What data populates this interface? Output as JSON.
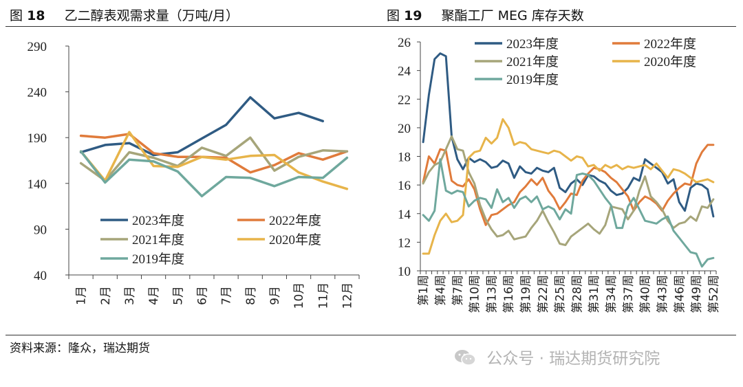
{
  "left": {
    "fig_label": "图",
    "fig_num": "18",
    "title": "乙二醇表观需求量（万吨/月）"
  },
  "right": {
    "fig_label": "图",
    "fig_num": "19",
    "title": "聚酯工厂 MEG 库存天数"
  },
  "footer": {
    "source": "资料来源：隆众，瑞达期货",
    "watermark": "公众号 · 瑞达期货研究院",
    "watermark_icon": "wechat-icon"
  },
  "colors": {
    "2023": "#2f5b83",
    "2022": "#e07b3b",
    "2021": "#a6a57a",
    "2020": "#e7b44a",
    "2019": "#6fa89d"
  },
  "chart_data": [
    {
      "type": "line",
      "categories": [
        "1月",
        "2月",
        "3月",
        "4月",
        "5月",
        "6月",
        "7月",
        "8月",
        "9月",
        "10月",
        "11月",
        "12月"
      ],
      "ylim": [
        40,
        290
      ],
      "yticks": [
        40,
        90,
        140,
        190,
        240,
        290
      ],
      "legend": "bottom-left",
      "grid": false,
      "series": [
        {
          "name": "2023年度",
          "key": "2023",
          "values": [
            174,
            182,
            184,
            171,
            174,
            189,
            204,
            234,
            211,
            217,
            208,
            null
          ]
        },
        {
          "name": "2022年度",
          "key": "2022",
          "values": [
            192,
            190,
            194,
            173,
            169,
            169,
            168,
            152,
            160,
            173,
            166,
            175
          ]
        },
        {
          "name": "2021年度",
          "key": "2021",
          "values": [
            162,
            143,
            174,
            168,
            159,
            179,
            170,
            190,
            154,
            169,
            176,
            175
          ]
        },
        {
          "name": "2020年度",
          "key": "2020",
          "values": [
            175,
            143,
            196,
            159,
            158,
            169,
            166,
            170,
            171,
            152,
            142,
            134
          ]
        },
        {
          "name": "2019年度",
          "key": "2019",
          "values": [
            175,
            141,
            166,
            164,
            153,
            126,
            147,
            146,
            137,
            147,
            146,
            168
          ]
        }
      ]
    },
    {
      "type": "line",
      "x_tick_labels": [
        "第1周",
        "第4周",
        "第7周",
        "第10周",
        "第13周",
        "第16周",
        "第19周",
        "第22周",
        "第25周",
        "第28周",
        "第31周",
        "第34周",
        "第37周",
        "第40周",
        "第43周",
        "第46周",
        "第49周",
        "第52周"
      ],
      "x_count": 52,
      "ylim": [
        10,
        26
      ],
      "yticks": [
        10,
        12,
        14,
        16,
        18,
        20,
        22,
        24,
        26
      ],
      "legend": "top",
      "grid": false,
      "series": [
        {
          "name": "2023年度",
          "key": "2023",
          "values": [
            19.0,
            22.3,
            24.8,
            25.2,
            25.0,
            19.4,
            17.8,
            17.1,
            17.9,
            17.6,
            17.8,
            17.6,
            17.2,
            17.3,
            17.7,
            17.5,
            16.5,
            17.3,
            16.9,
            16.8,
            17.2,
            17.0,
            16.9,
            17.2,
            15.8,
            15.5,
            16.1,
            16.4,
            16.0,
            16.7,
            16.6,
            16.3,
            16.1,
            15.6,
            15.3,
            15.4,
            15.8,
            16.5,
            16.3,
            17.8,
            17.5,
            17.2,
            16.9,
            16.1,
            16.4,
            14.8,
            14.2,
            15.8,
            16.1,
            16.0,
            15.7,
            13.8
          ]
        },
        {
          "name": "2022年度",
          "key": "2022",
          "values": [
            16.2,
            18.0,
            17.5,
            18.5,
            18.4,
            16.3,
            16.0,
            15.9,
            16.4,
            15.7,
            14.3,
            13.2,
            13.9,
            14.0,
            14.3,
            14.6,
            14.8,
            15.5,
            15.9,
            16.4,
            16.0,
            16.5,
            15.6,
            15.1,
            14.3,
            14.8,
            15.4,
            15.3,
            16.3,
            16.8,
            17.2,
            17.1,
            16.9,
            16.5,
            16.2,
            15.7,
            15.2,
            14.2,
            14.8,
            15.2,
            15.0,
            14.7,
            14.2,
            14.9,
            15.4,
            15.8,
            16.1,
            16.0,
            17.5,
            18.3,
            18.8,
            18.8
          ]
        },
        {
          "name": "2021年度",
          "key": "2021",
          "values": [
            16.1,
            16.9,
            17.4,
            17.6,
            18.5,
            19.4,
            18.5,
            18.4,
            16.9,
            16.1,
            14.6,
            13.6,
            12.9,
            12.4,
            12.5,
            12.8,
            12.2,
            12.3,
            12.4,
            13.0,
            13.5,
            14.2,
            13.4,
            12.7,
            11.9,
            11.8,
            12.4,
            12.7,
            13.0,
            13.3,
            12.9,
            12.6,
            13.2,
            14.5,
            14.4,
            14.3,
            13.6,
            14.2,
            15.6,
            16.6,
            15.2,
            14.8,
            14.3,
            13.5,
            13.0,
            13.3,
            13.4,
            13.8,
            13.5,
            14.5,
            14.4,
            15.0
          ]
        },
        {
          "name": "2020年度",
          "key": "2020",
          "values": [
            11.2,
            11.2,
            12.5,
            13.5,
            14.0,
            13.4,
            13.5,
            13.9,
            17.9,
            18.3,
            18.4,
            19.3,
            18.9,
            19.3,
            20.6,
            20.0,
            18.8,
            19.0,
            18.9,
            18.5,
            18.4,
            18.3,
            18.2,
            18.4,
            18.3,
            18.0,
            17.7,
            18.0,
            17.9,
            17.3,
            17.4,
            17.0,
            17.4,
            17.2,
            17.4,
            17.1,
            17.3,
            17.2,
            17.3,
            17.4,
            17.1,
            17.5,
            17.0,
            16.5,
            17.1,
            17.0,
            16.8,
            16.5,
            16.2,
            16.3,
            16.4,
            16.2
          ]
        },
        {
          "name": "2019年度",
          "key": "2019",
          "values": [
            13.9,
            13.5,
            14.2,
            17.8,
            15.6,
            15.4,
            15.6,
            15.5,
            14.5,
            14.9,
            15.1,
            15.0,
            14.4,
            15.7,
            14.8,
            15.1,
            14.4,
            15.0,
            15.2,
            14.8,
            15.2,
            14.3,
            14.5,
            14.3,
            13.6,
            14.3,
            14.0,
            16.7,
            16.8,
            16.7,
            16.3,
            15.7,
            15.1,
            14.6,
            13.0,
            13.0,
            14.5,
            15.1,
            14.3,
            13.5,
            13.4,
            13.3,
            13.6,
            13.8,
            12.8,
            12.3,
            11.8,
            11.3,
            11.2,
            10.3,
            10.8,
            10.9
          ]
        }
      ]
    }
  ]
}
